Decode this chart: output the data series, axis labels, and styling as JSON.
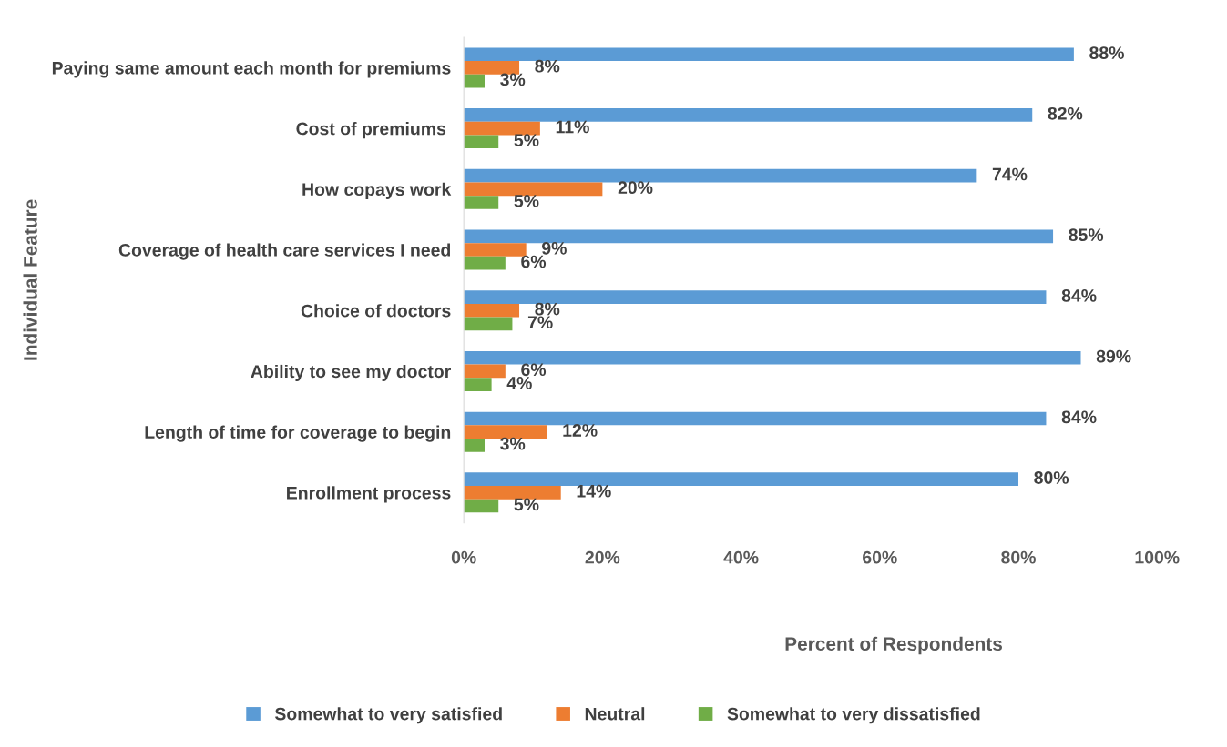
{
  "chart_data": {
    "type": "bar",
    "orientation": "horizontal",
    "xlabel": "Percent of Respondents",
    "ylabel": "Individual Feature",
    "categories": [
      "Paying same amount each month for premiums",
      "Cost of premiums ",
      "How copays work",
      "Coverage of health care services I need",
      "Choice of doctors",
      "Ability to see my doctor",
      "Length of time for coverage to begin",
      "Enrollment process"
    ],
    "series": [
      {
        "name": "Somewhat to very satisfied",
        "color": "#5b9bd5",
        "values": [
          88,
          82,
          74,
          85,
          84,
          89,
          84,
          80
        ],
        "value_labels": [
          "88%",
          "82%",
          "74%",
          "85%",
          "84%",
          "89%",
          "84%",
          "80%"
        ]
      },
      {
        "name": "Neutral",
        "color": "#ed7d31",
        "values": [
          8,
          11,
          20,
          9,
          8,
          6,
          12,
          14
        ],
        "value_labels": [
          "8%",
          "11%",
          "20%",
          "9%",
          "8%",
          "6%",
          "12%",
          "14%"
        ]
      },
      {
        "name": "Somewhat to very dissatisfied",
        "color": "#70ad47",
        "values": [
          3,
          5,
          5,
          6,
          7,
          4,
          3,
          5
        ],
        "value_labels": [
          "3%",
          "5%",
          "5%",
          "6%",
          "7%",
          "4%",
          "3%",
          "5%"
        ]
      }
    ],
    "xlim": [
      0,
      100
    ],
    "xticks": [
      {
        "value": 0,
        "label": "0%"
      },
      {
        "value": 20,
        "label": "20%"
      },
      {
        "value": 40,
        "label": "40%"
      },
      {
        "value": 60,
        "label": "60%"
      },
      {
        "value": 80,
        "label": "80%"
      },
      {
        "value": 100,
        "label": "100%"
      }
    ],
    "grid": false,
    "legend": "bottom"
  }
}
